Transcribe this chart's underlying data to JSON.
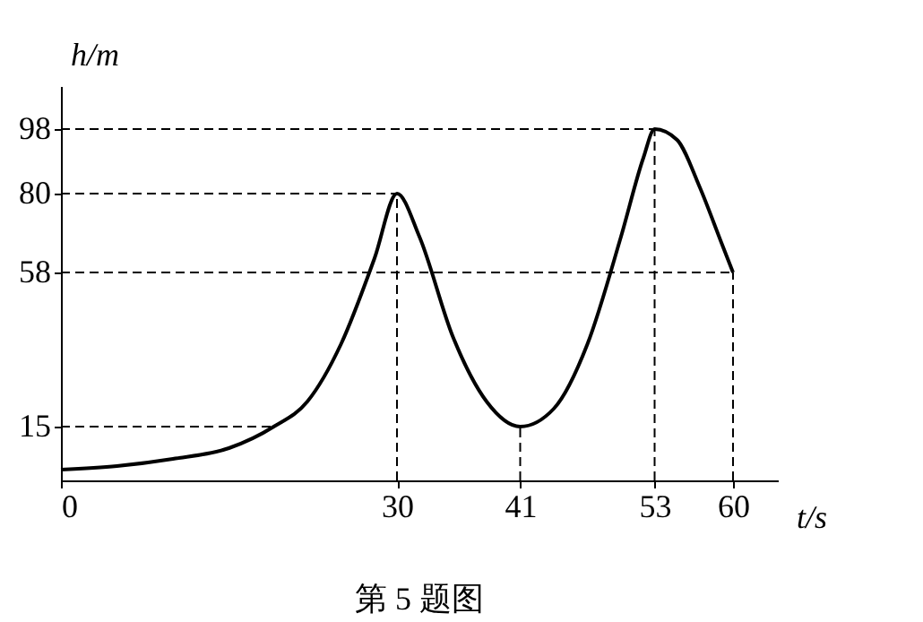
{
  "chart_data": {
    "type": "line",
    "title": "第 5 题图",
    "xlabel": "t/s",
    "ylabel": "h/m",
    "x": [
      0,
      5,
      10,
      15,
      19,
      22,
      25,
      28,
      30,
      32,
      35,
      38,
      41,
      44,
      47,
      50,
      52,
      53,
      55,
      57,
      59,
      60
    ],
    "series": [
      {
        "color": "#000000",
        "values": [
          3,
          4,
          6,
          9,
          15,
          22,
          38,
          62,
          80,
          68,
          40,
          22,
          15,
          20,
          38,
          68,
          90,
          98,
          95,
          82,
          66,
          58
        ]
      }
    ],
    "xlim": [
      0,
      64
    ],
    "ylim": [
      0,
      110
    ],
    "xticks": [
      0,
      30,
      41,
      53,
      60
    ],
    "yticks": [
      15,
      58,
      80,
      98
    ],
    "ref_lines": [
      {
        "axis": "y",
        "value": 15,
        "line_style": "dashed"
      },
      {
        "axis": "y",
        "value": 58,
        "line_style": "dashed"
      },
      {
        "axis": "y",
        "value": 80,
        "line_style": "dashed"
      },
      {
        "axis": "y",
        "value": 98,
        "line_style": "dashed"
      },
      {
        "axis": "x",
        "value": 30,
        "line_style": "dashed"
      },
      {
        "axis": "x",
        "value": 41,
        "line_style": "dashed"
      },
      {
        "axis": "x",
        "value": 53,
        "line_style": "dashed"
      },
      {
        "axis": "x",
        "value": 60,
        "line_style": "dashed"
      }
    ],
    "grid": false,
    "marker": "none",
    "line_style": "solid"
  }
}
